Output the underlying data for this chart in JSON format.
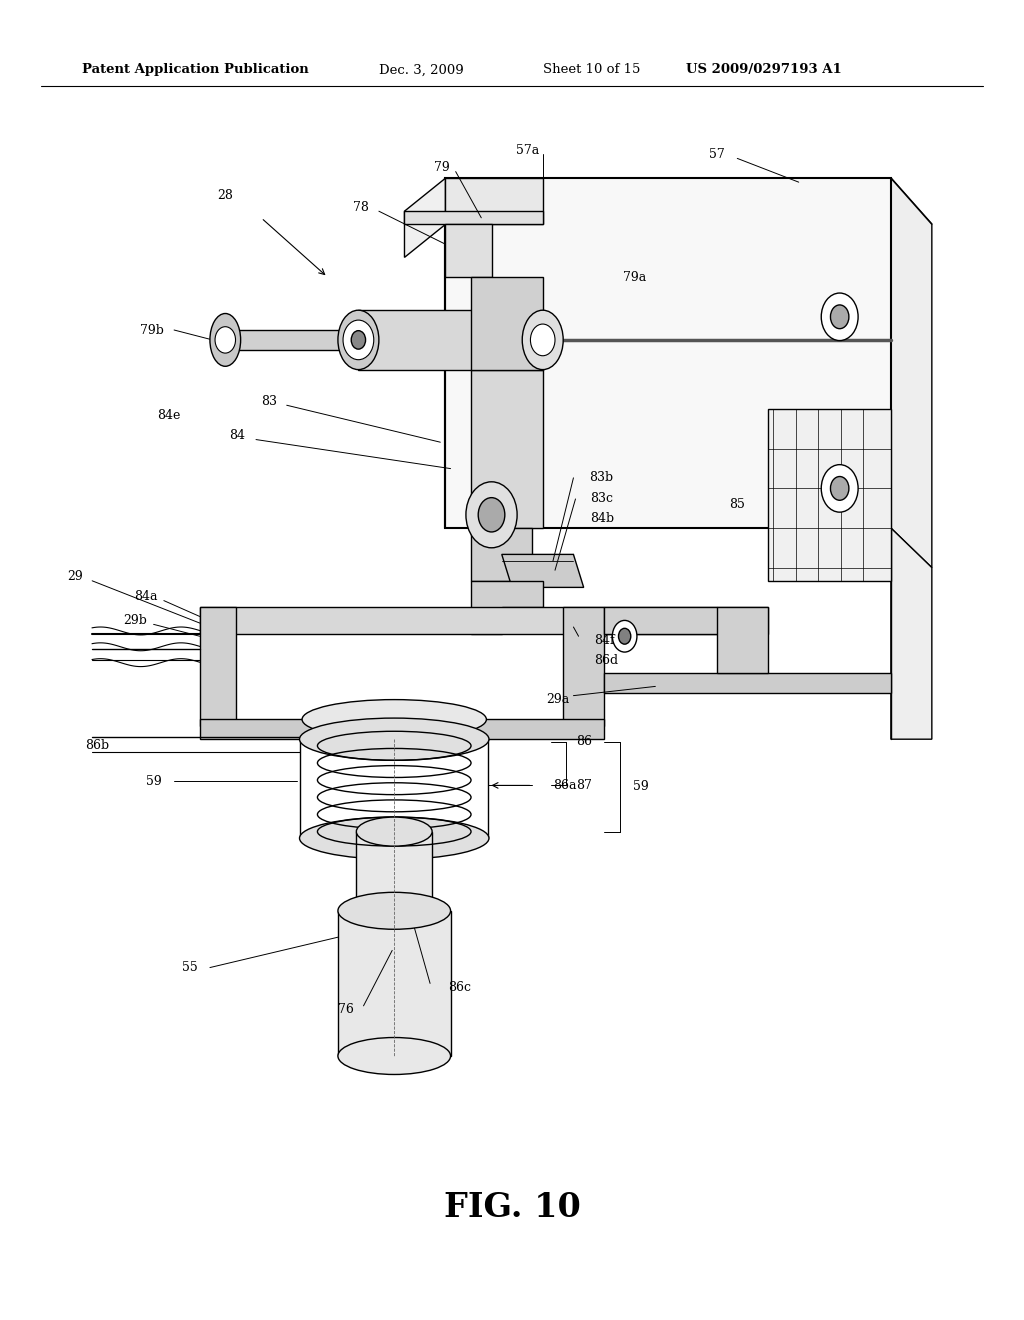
{
  "background_color": "#ffffff",
  "page_width": 10.24,
  "page_height": 13.2,
  "header_text": "Patent Application Publication",
  "header_date": "Dec. 3, 2009",
  "header_sheet": "Sheet 10 of 15",
  "header_patent": "US 2009/0297193 A1",
  "figure_label": "FIG. 10",
  "line_color": "#000000",
  "text_color": "#000000",
  "header_fontsize": 9.5,
  "label_fontsize": 9.0,
  "fig_label_fontsize": 24,
  "lw_main": 1.0,
  "lw_thick": 1.5
}
